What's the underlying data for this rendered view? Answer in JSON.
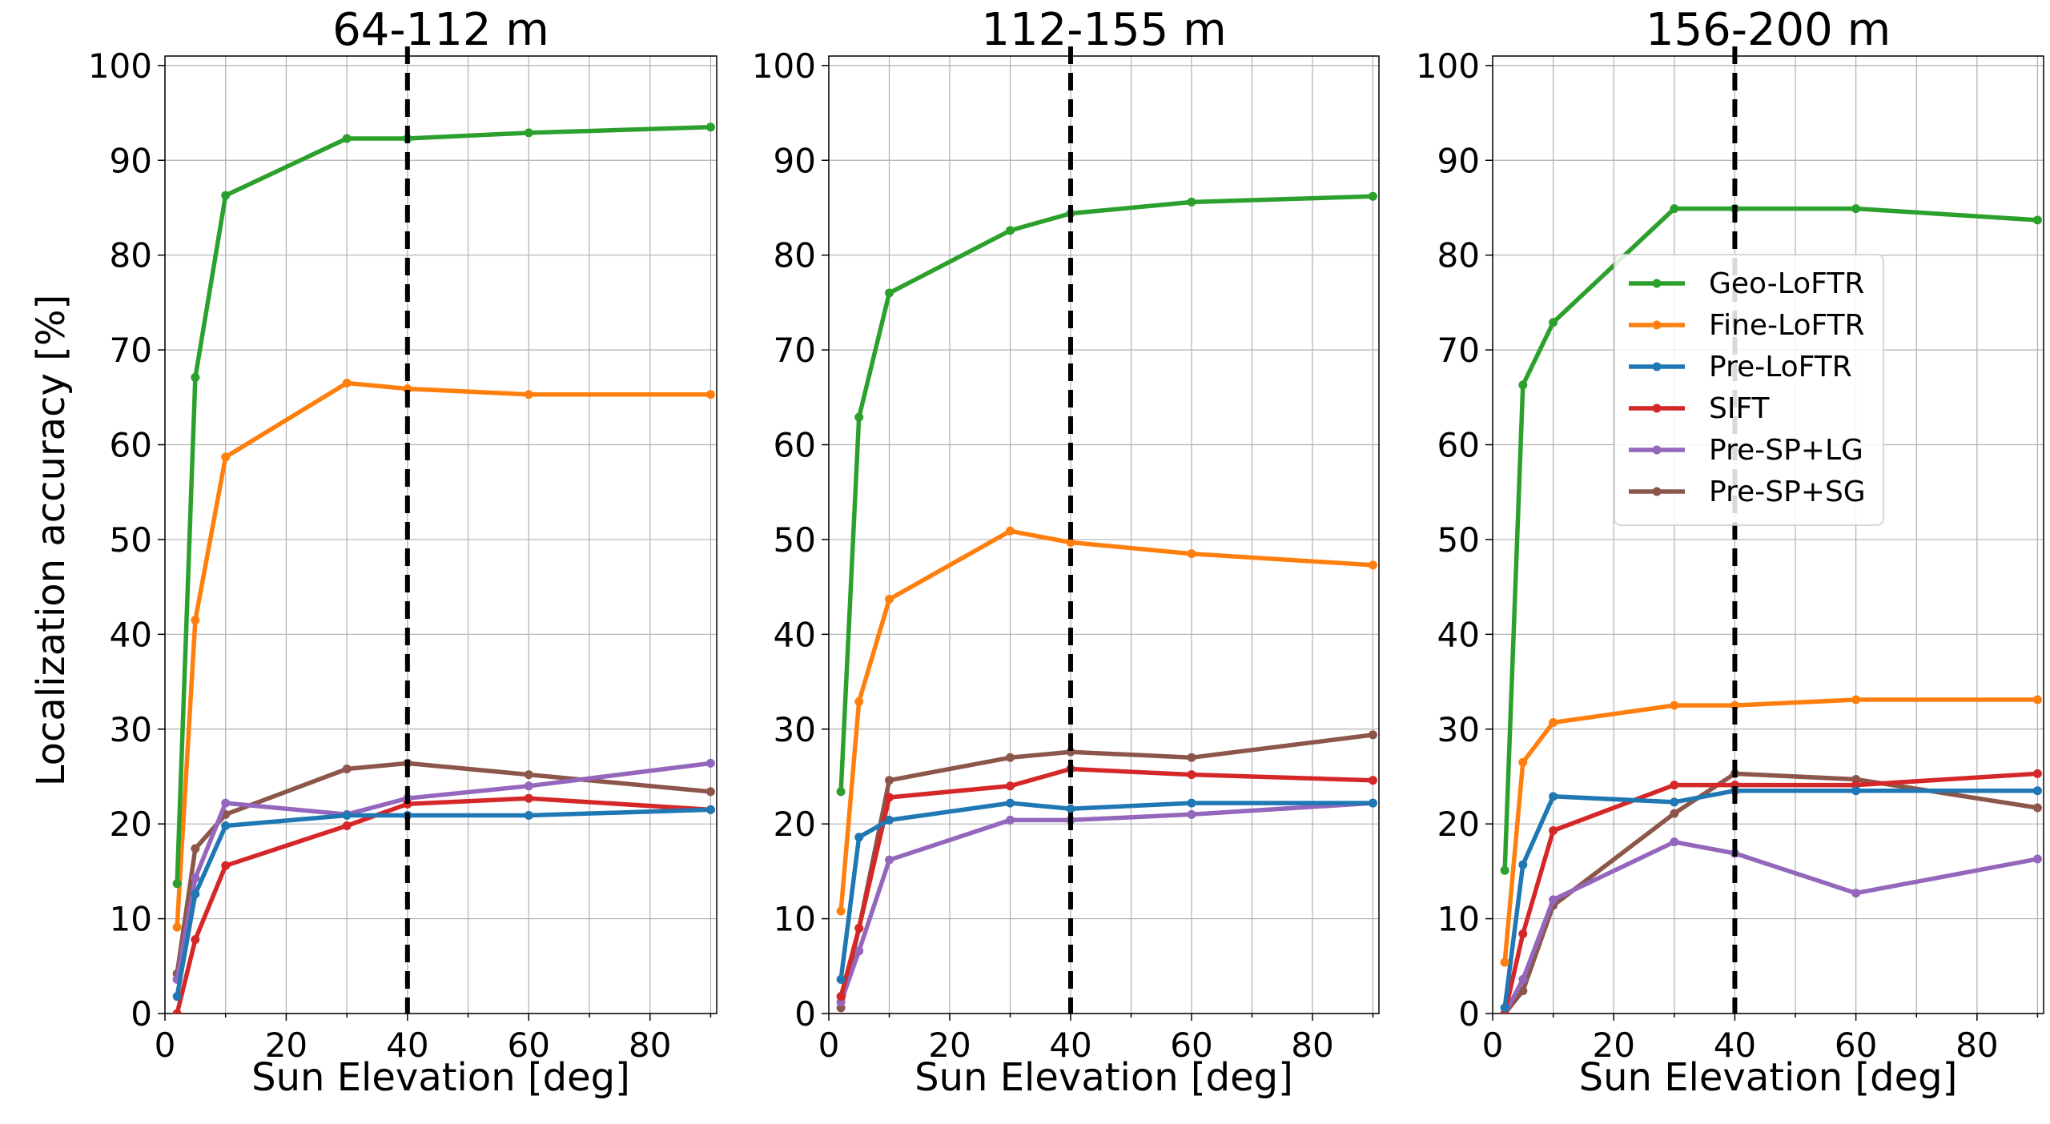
{
  "figure": {
    "ylabel": "Localization accuracy [%]",
    "xlabel": "Sun Elevation [deg]",
    "reference_line_x": 40
  },
  "series_styles": [
    {
      "name": "Geo-LoFTR",
      "color": "#2ca02c"
    },
    {
      "name": "Fine-LoFTR",
      "color": "#ff7f0e"
    },
    {
      "name": "Pre-LoFTR",
      "color": "#1f77b4"
    },
    {
      "name": "SIFT",
      "color": "#d62728"
    },
    {
      "name": "Pre-SP+LG",
      "color": "#9467bd"
    },
    {
      "name": "Pre-SP+SG",
      "color": "#8c564b"
    }
  ],
  "chart_data": [
    {
      "type": "line",
      "title": "64-112 m",
      "xlabel": "Sun Elevation [deg]",
      "ylabel": "Localization accuracy [%]",
      "xlim": [
        0,
        91
      ],
      "ylim": [
        0,
        101
      ],
      "xticks": [
        0,
        20,
        40,
        60,
        80
      ],
      "yticks": [
        0,
        10,
        20,
        30,
        40,
        50,
        60,
        70,
        80,
        90,
        100
      ],
      "grid": true,
      "legend": null,
      "x": [
        2,
        5,
        10,
        30,
        40,
        60,
        90
      ],
      "series": [
        {
          "name": "Geo-LoFTR",
          "values": [
            13.7,
            67.1,
            86.3,
            92.3,
            92.3,
            92.9,
            93.5
          ]
        },
        {
          "name": "Fine-LoFTR",
          "values": [
            9.1,
            41.5,
            58.7,
            66.5,
            65.9,
            65.3,
            65.3
          ]
        },
        {
          "name": "Pre-LoFTR",
          "values": [
            1.8,
            12.6,
            19.8,
            20.9,
            20.9,
            20.9,
            21.5
          ]
        },
        {
          "name": "SIFT",
          "values": [
            0.0,
            7.8,
            15.6,
            19.8,
            22.1,
            22.7,
            21.5
          ]
        },
        {
          "name": "Pre-SP+LG",
          "values": [
            3.6,
            14.3,
            22.2,
            21.0,
            22.7,
            24.0,
            26.4
          ]
        },
        {
          "name": "Pre-SP+SG",
          "values": [
            4.2,
            17.4,
            21.0,
            25.8,
            26.4,
            25.2,
            23.4
          ]
        }
      ]
    },
    {
      "type": "line",
      "title": "112-155 m",
      "xlabel": "Sun Elevation [deg]",
      "ylabel": "",
      "xlim": [
        0,
        91
      ],
      "ylim": [
        0,
        101
      ],
      "xticks": [
        0,
        20,
        40,
        60,
        80
      ],
      "yticks": [
        0,
        10,
        20,
        30,
        40,
        50,
        60,
        70,
        80,
        90,
        100
      ],
      "grid": true,
      "legend": null,
      "x": [
        2,
        5,
        10,
        30,
        40,
        60,
        90
      ],
      "series": [
        {
          "name": "Geo-LoFTR",
          "values": [
            23.4,
            62.9,
            76.0,
            82.6,
            84.4,
            85.6,
            86.2
          ]
        },
        {
          "name": "Fine-LoFTR",
          "values": [
            10.8,
            32.9,
            43.7,
            50.9,
            49.7,
            48.5,
            47.3
          ]
        },
        {
          "name": "Pre-LoFTR",
          "values": [
            3.6,
            18.6,
            20.4,
            22.2,
            21.6,
            22.2,
            22.2
          ]
        },
        {
          "name": "SIFT",
          "values": [
            1.8,
            9.0,
            22.8,
            24.0,
            25.8,
            25.2,
            24.6
          ]
        },
        {
          "name": "Pre-SP+LG",
          "values": [
            1.2,
            6.6,
            16.2,
            20.4,
            20.4,
            21.0,
            22.2
          ]
        },
        {
          "name": "Pre-SP+SG",
          "values": [
            0.6,
            9.0,
            24.6,
            27.0,
            27.6,
            27.0,
            29.4
          ]
        }
      ]
    },
    {
      "type": "line",
      "title": "156-200 m",
      "xlabel": "Sun Elevation [deg]",
      "ylabel": "",
      "xlim": [
        0,
        91
      ],
      "ylim": [
        0,
        101
      ],
      "xticks": [
        0,
        20,
        40,
        60,
        80
      ],
      "yticks": [
        0,
        10,
        20,
        30,
        40,
        50,
        60,
        70,
        80,
        90,
        100
      ],
      "grid": true,
      "legend": "upper-center",
      "x": [
        2,
        5,
        10,
        30,
        40,
        60,
        90
      ],
      "series": [
        {
          "name": "Geo-LoFTR",
          "values": [
            15.1,
            66.3,
            72.9,
            84.9,
            84.9,
            84.9,
            83.7
          ]
        },
        {
          "name": "Fine-LoFTR",
          "values": [
            5.4,
            26.5,
            30.7,
            32.5,
            32.5,
            33.1,
            33.1
          ]
        },
        {
          "name": "Pre-LoFTR",
          "values": [
            0.6,
            15.7,
            22.9,
            22.3,
            23.5,
            23.5,
            23.5
          ]
        },
        {
          "name": "SIFT",
          "values": [
            0.0,
            8.4,
            19.3,
            24.1,
            24.1,
            24.1,
            25.3
          ]
        },
        {
          "name": "Pre-SP+LG",
          "values": [
            0.0,
            3.6,
            12.0,
            18.1,
            16.9,
            12.7,
            16.3
          ]
        },
        {
          "name": "Pre-SP+SG",
          "values": [
            0.0,
            2.4,
            11.4,
            21.1,
            25.3,
            24.7,
            21.7
          ]
        }
      ]
    }
  ]
}
